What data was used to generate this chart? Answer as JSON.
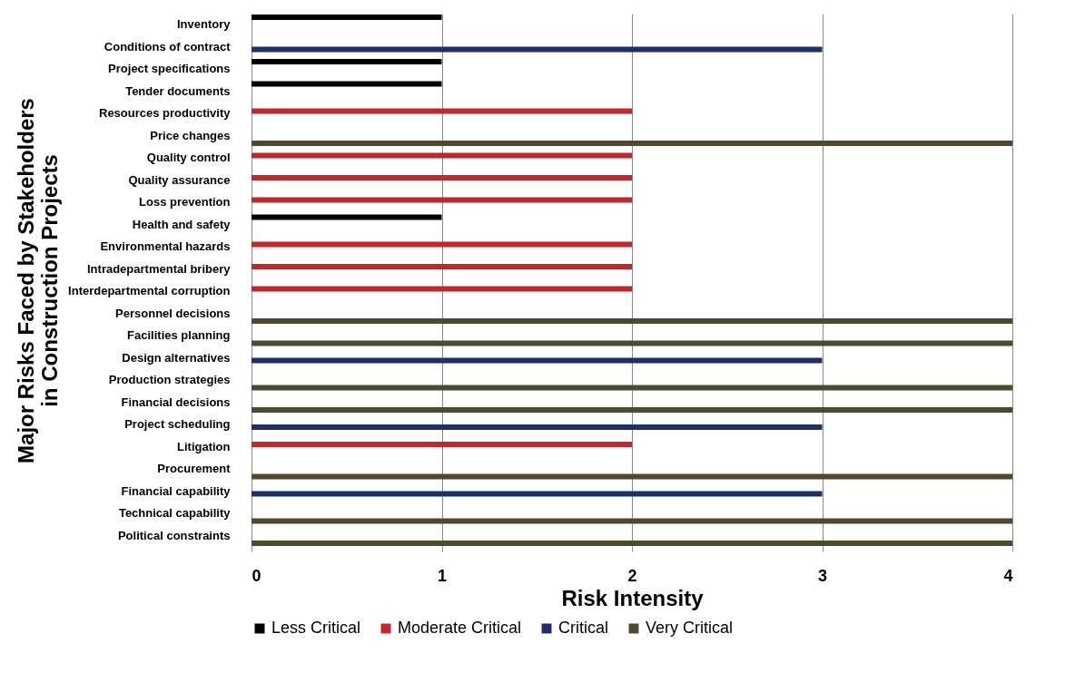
{
  "chart_data": {
    "type": "bar",
    "orientation": "horizontal",
    "xlabel": "Risk Intensity",
    "ylabel": "Major Risks Faced by Stakeholders in Construction Projects",
    "categories": [
      "Inventory",
      "Conditions of contract",
      "Project specifications",
      "Tender documents",
      "Resources productivity",
      "Price changes",
      "Quality control",
      "Quality assurance",
      "Loss prevention",
      "Health and safety",
      "Environmental hazards",
      "Intradepartmental bribery",
      "Interdepartmental corruption",
      "Personnel decisions",
      "Facilities planning",
      "Design alternatives",
      "Production strategies",
      "Financial decisions",
      "Project scheduling",
      "Litigation",
      "Procurement",
      "Financial capability",
      "Technical capability",
      "Political constraints"
    ],
    "series": [
      {
        "name": "Less Critical",
        "color": "#000000",
        "values": [
          1,
          null,
          1,
          1,
          null,
          null,
          null,
          null,
          null,
          1,
          null,
          null,
          null,
          null,
          null,
          null,
          null,
          null,
          null,
          null,
          null,
          null,
          null,
          null
        ]
      },
      {
        "name": "Moderate Critical",
        "color": "#c0282d",
        "values": [
          null,
          null,
          null,
          null,
          2,
          null,
          2,
          2,
          2,
          null,
          2,
          2,
          2,
          null,
          null,
          null,
          null,
          null,
          null,
          2,
          null,
          null,
          null,
          null
        ]
      },
      {
        "name": "Critical",
        "color": "#1f2f6b",
        "values": [
          null,
          3,
          null,
          null,
          null,
          null,
          null,
          null,
          null,
          null,
          null,
          null,
          null,
          null,
          null,
          3,
          null,
          null,
          3,
          null,
          null,
          3,
          null,
          null
        ]
      },
      {
        "name": "Very Critical",
        "color": "#4f4a2e",
        "values": [
          null,
          null,
          null,
          null,
          null,
          4,
          null,
          null,
          null,
          null,
          null,
          null,
          null,
          4,
          4,
          null,
          4,
          4,
          null,
          null,
          4,
          null,
          4,
          4
        ]
      }
    ],
    "xlim": [
      0,
      4
    ],
    "xticks": [
      0,
      1,
      2,
      3,
      4
    ],
    "grid": "x",
    "legend": "bottom"
  }
}
